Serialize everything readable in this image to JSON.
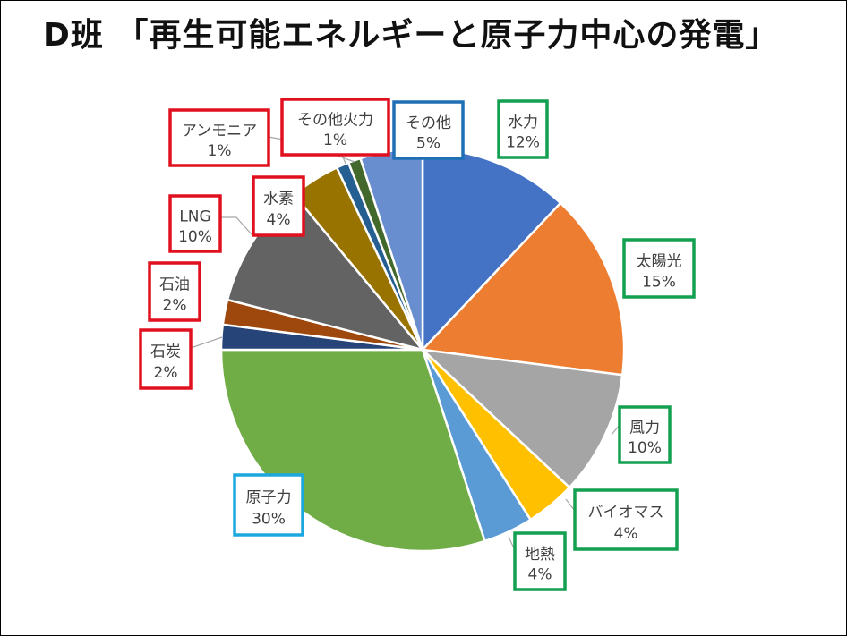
{
  "title": "D班 「再生可能エネルギーと原子力中心の発電」",
  "chart_data": {
    "type": "pie",
    "title": "D班 「再生可能エネルギーと原子力中心の発電」",
    "start_angle_deg": 0,
    "direction": "clockwise",
    "slices": [
      {
        "name": "水力",
        "value": 12,
        "label": "12%",
        "color": "#4472C4",
        "box_color": "#13A050"
      },
      {
        "name": "太陽光",
        "value": 15,
        "label": "15%",
        "color": "#ED7D31",
        "box_color": "#13A050"
      },
      {
        "name": "風力",
        "value": 10,
        "label": "10%",
        "color": "#A5A5A5",
        "box_color": "#13A050"
      },
      {
        "name": "バイオマス",
        "value": 4,
        "label": "4%",
        "color": "#FFC000",
        "box_color": "#13A050"
      },
      {
        "name": "地熱",
        "value": 4,
        "label": "4%",
        "color": "#5B9BD5",
        "box_color": "#13A050"
      },
      {
        "name": "原子力",
        "value": 30,
        "label": "30%",
        "color": "#70AD47",
        "box_color": "#1CA8DD"
      },
      {
        "name": "石炭",
        "value": 2,
        "label": "2%",
        "color": "#264478",
        "box_color": "#E0101E"
      },
      {
        "name": "石油",
        "value": 2,
        "label": "2%",
        "color": "#9E480E",
        "box_color": "#E0101E"
      },
      {
        "name": "LNG",
        "value": 10,
        "label": "10%",
        "color": "#636363",
        "box_color": "#E0101E"
      },
      {
        "name": "水素",
        "value": 4,
        "label": "4%",
        "color": "#997300",
        "box_color": "#E0101E"
      },
      {
        "name": "アンモニア",
        "value": 1,
        "label": "1%",
        "color": "#255E91",
        "box_color": "#E0101E"
      },
      {
        "name": "その他火力",
        "value": 1,
        "label": "1%",
        "color": "#43682B",
        "box_color": "#E0101E"
      },
      {
        "name": "その他",
        "value": 5,
        "label": "5%",
        "color": "#698ED0",
        "box_color": "#1F6FB5"
      }
    ]
  }
}
